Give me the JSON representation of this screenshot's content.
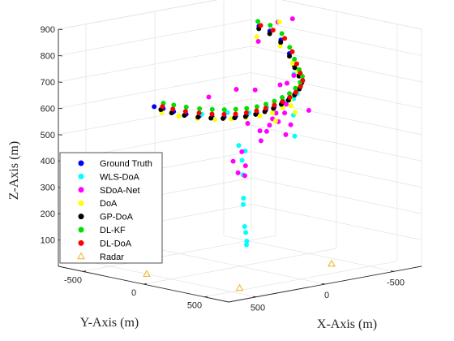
{
  "chart_data": {
    "type": "scatter",
    "dimensions": "3d",
    "title": "",
    "xlabel": "X-Axis (m)",
    "ylabel": "Y-Axis (m)",
    "zlabel": "Z-Axis (m)",
    "xlim": [
      -700,
      700
    ],
    "ylim": [
      -700,
      700
    ],
    "zlim": [
      0,
      900
    ],
    "x_ticks": [
      {
        "value": -500,
        "label": "-500"
      },
      {
        "value": 0,
        "label": "0"
      },
      {
        "value": 500,
        "label": "500"
      }
    ],
    "y_ticks": [
      {
        "value": -500,
        "label": "-500"
      },
      {
        "value": 0,
        "label": "0"
      },
      {
        "value": 500,
        "label": "500"
      }
    ],
    "z_ticks": [
      {
        "value": 100,
        "label": "100"
      },
      {
        "value": 200,
        "label": "200"
      },
      {
        "value": 300,
        "label": "300"
      },
      {
        "value": 400,
        "label": "400"
      },
      {
        "value": 500,
        "label": "500"
      },
      {
        "value": 600,
        "label": "600"
      },
      {
        "value": 700,
        "label": "700"
      },
      {
        "value": 800,
        "label": "800"
      },
      {
        "value": 900,
        "label": "900"
      }
    ],
    "grid": true,
    "legend_position": "bottom-left",
    "series": [
      {
        "name": "Ground Truth",
        "color": "#0000ff",
        "marker": "circle",
        "points": [
          [
            -420,
            -320,
            840
          ],
          [
            -420,
            -230,
            830
          ],
          [
            -420,
            -140,
            805
          ],
          [
            -420,
            -70,
            760
          ],
          [
            -420,
            -30,
            720
          ],
          [
            -420,
            10,
            690
          ],
          [
            -390,
            70,
            672
          ],
          [
            -330,
            120,
            660
          ],
          [
            -260,
            160,
            647
          ],
          [
            -190,
            190,
            638
          ],
          [
            -120,
            210,
            630
          ],
          [
            -50,
            225,
            622
          ],
          [
            20,
            235,
            618
          ],
          [
            90,
            240,
            614
          ],
          [
            160,
            235,
            612
          ],
          [
            230,
            225,
            613
          ],
          [
            300,
            210,
            616
          ],
          [
            370,
            190,
            622
          ],
          [
            440,
            165,
            630
          ],
          [
            510,
            135,
            640
          ],
          [
            570,
            100,
            652
          ],
          [
            610,
            60,
            664
          ],
          [
            640,
            20,
            670
          ]
        ]
      },
      {
        "name": "WLS-DoA",
        "color": "#00ffff",
        "marker": "circle",
        "points": [
          [
            -400,
            -10,
            690
          ],
          [
            -380,
            10,
            600
          ],
          [
            -370,
            20,
            540
          ],
          [
            -375,
            25,
            460
          ],
          [
            -300,
            130,
            640
          ],
          [
            -150,
            200,
            630
          ],
          [
            0,
            220,
            625
          ],
          [
            120,
            210,
            615
          ],
          [
            250,
            180,
            625
          ],
          [
            400,
            140,
            630
          ],
          [
            300,
            330,
            520
          ],
          [
            280,
            360,
            500
          ],
          [
            320,
            380,
            470
          ],
          [
            340,
            410,
            420
          ],
          [
            380,
            460,
            340
          ],
          [
            400,
            480,
            320
          ],
          [
            460,
            560,
            250
          ],
          [
            470,
            580,
            230
          ],
          [
            480,
            600,
            200
          ],
          [
            500,
            620,
            190
          ]
        ]
      },
      {
        "name": "SDoA-Net",
        "color": "#ff00ff",
        "marker": "circle",
        "points": [
          [
            -540,
            -180,
            870
          ],
          [
            -470,
            -220,
            860
          ],
          [
            -380,
            -280,
            790
          ],
          [
            -470,
            -90,
            670
          ],
          [
            -350,
            -10,
            660
          ],
          [
            -300,
            40,
            590
          ],
          [
            -280,
            50,
            560
          ],
          [
            -420,
            90,
            560
          ],
          [
            -280,
            100,
            520
          ],
          [
            -120,
            180,
            555
          ],
          [
            -50,
            240,
            600
          ],
          [
            20,
            290,
            590
          ],
          [
            50,
            300,
            570
          ],
          [
            80,
            310,
            550
          ],
          [
            120,
            300,
            555
          ],
          [
            200,
            290,
            590
          ],
          [
            130,
            320,
            520
          ],
          [
            260,
            310,
            490
          ],
          [
            260,
            340,
            440
          ],
          [
            300,
            380,
            410
          ],
          [
            420,
            420,
            480
          ],
          [
            420,
            460,
            440
          ],
          [
            -200,
            150,
            495
          ],
          [
            40,
            170,
            690
          ],
          [
            150,
            140,
            700
          ],
          [
            350,
            140,
            690
          ],
          [
            -150,
            160,
            690
          ]
        ]
      },
      {
        "name": "DoA",
        "color": "#ffff00",
        "marker": "circle",
        "points": [
          [
            -480,
            -220,
            860
          ],
          [
            -360,
            -270,
            810
          ],
          [
            -380,
            -100,
            790
          ],
          [
            -400,
            -20,
            730
          ],
          [
            -410,
            10,
            700
          ],
          [
            -380,
            60,
            650
          ],
          [
            -250,
            130,
            620
          ],
          [
            -150,
            180,
            605
          ],
          [
            -50,
            210,
            598
          ],
          [
            50,
            220,
            597
          ],
          [
            150,
            220,
            600
          ],
          [
            250,
            210,
            604
          ],
          [
            350,
            190,
            610
          ],
          [
            450,
            160,
            620
          ],
          [
            550,
            120,
            635
          ],
          [
            620,
            60,
            650
          ],
          [
            -330,
            80,
            560
          ],
          [
            -290,
            90,
            590
          ],
          [
            -100,
            180,
            560
          ]
        ]
      },
      {
        "name": "GP-DoA",
        "color": "#000000",
        "marker": "circle",
        "points": [
          [
            -410,
            -310,
            832
          ],
          [
            -410,
            -220,
            822
          ],
          [
            -410,
            -130,
            798
          ],
          [
            -412,
            -60,
            752
          ],
          [
            -415,
            -20,
            712
          ],
          [
            -412,
            18,
            684
          ],
          [
            -380,
            75,
            666
          ],
          [
            -320,
            125,
            654
          ],
          [
            -250,
            165,
            642
          ],
          [
            -180,
            195,
            632
          ],
          [
            -110,
            215,
            625
          ],
          [
            -40,
            230,
            618
          ],
          [
            30,
            238,
            613
          ],
          [
            100,
            242,
            610
          ],
          [
            170,
            238,
            608
          ],
          [
            240,
            228,
            609
          ],
          [
            310,
            212,
            612
          ],
          [
            380,
            192,
            618
          ],
          [
            450,
            165,
            626
          ],
          [
            520,
            132,
            636
          ],
          [
            580,
            95,
            648
          ],
          [
            620,
            52,
            660
          ]
        ]
      },
      {
        "name": "DL-KF",
        "color": "#00e000",
        "marker": "circle",
        "points": [
          [
            -430,
            -340,
            855
          ],
          [
            -440,
            -250,
            848
          ],
          [
            -445,
            -160,
            825
          ],
          [
            -440,
            -90,
            780
          ],
          [
            -435,
            -45,
            740
          ],
          [
            -430,
            0,
            705
          ],
          [
            -400,
            60,
            688
          ],
          [
            -340,
            110,
            676
          ],
          [
            -270,
            150,
            664
          ],
          [
            -200,
            180,
            654
          ],
          [
            -130,
            200,
            648
          ],
          [
            -60,
            215,
            642
          ],
          [
            10,
            225,
            638
          ],
          [
            80,
            230,
            636
          ],
          [
            150,
            225,
            636
          ],
          [
            220,
            215,
            638
          ],
          [
            290,
            200,
            642
          ],
          [
            360,
            180,
            648
          ],
          [
            430,
            155,
            655
          ],
          [
            500,
            125,
            665
          ],
          [
            560,
            90,
            675
          ],
          [
            600,
            50,
            682
          ]
        ]
      },
      {
        "name": "DL-DoA",
        "color": "#ff0000",
        "marker": "circle",
        "points": [
          [
            -415,
            -300,
            845
          ],
          [
            -425,
            -210,
            835
          ],
          [
            -430,
            -120,
            812
          ],
          [
            -428,
            -55,
            768
          ],
          [
            -425,
            -15,
            726
          ],
          [
            -418,
            22,
            695
          ],
          [
            -385,
            80,
            676
          ],
          [
            -325,
            130,
            664
          ],
          [
            -255,
            170,
            652
          ],
          [
            -185,
            200,
            643
          ],
          [
            -115,
            220,
            636
          ],
          [
            -45,
            232,
            630
          ],
          [
            25,
            240,
            626
          ],
          [
            95,
            244,
            623
          ],
          [
            165,
            240,
            622
          ],
          [
            235,
            230,
            623
          ],
          [
            305,
            215,
            627
          ],
          [
            375,
            195,
            633
          ],
          [
            445,
            168,
            641
          ],
          [
            515,
            136,
            651
          ],
          [
            575,
            100,
            662
          ],
          [
            615,
            60,
            672
          ]
        ]
      },
      {
        "name": "Radar",
        "color": "#edb120",
        "marker": "triangle-open",
        "points": [
          [
            -400,
            300,
            0
          ],
          [
            400,
            450,
            0
          ],
          [
            500,
            -200,
            0
          ]
        ]
      }
    ]
  }
}
